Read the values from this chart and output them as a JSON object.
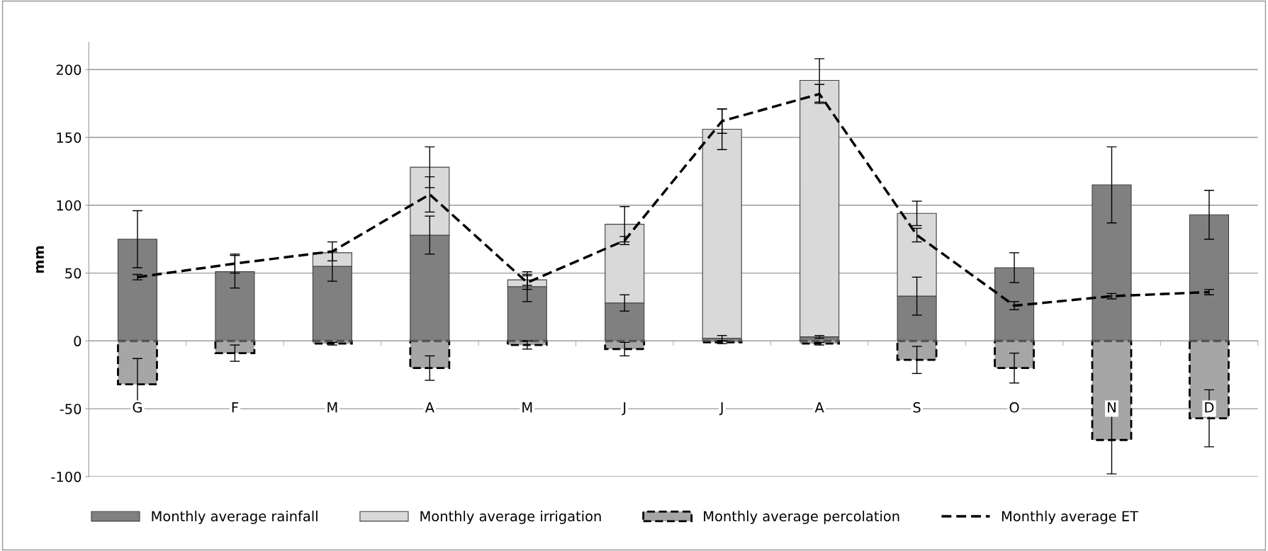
{
  "chart_data": {
    "type": "bar",
    "stacked": true,
    "ylabel": "mm",
    "categories": [
      "G",
      "F",
      "M",
      "A",
      "M",
      "J",
      "J",
      "A",
      "S",
      "O",
      "N",
      "D"
    ],
    "ylim": [
      -100,
      220
    ],
    "yticks": [
      -100,
      -50,
      0,
      50,
      100,
      150,
      200
    ],
    "grid": "y",
    "legend": "bottom",
    "series": [
      {
        "name": "Monthly average rainfall",
        "color": "#808080",
        "values": [
          75,
          51,
          55,
          78,
          40,
          28,
          2,
          3,
          33,
          54,
          115,
          93
        ],
        "errors": [
          21,
          12,
          11,
          14,
          11,
          6,
          2,
          1,
          14,
          11,
          28,
          18
        ]
      },
      {
        "name": "Monthly average irrigation",
        "color": "#d9d9d9",
        "values": [
          0,
          0,
          10,
          50,
          5,
          58,
          154,
          189,
          61,
          0,
          0,
          0
        ],
        "errors": [
          null,
          null,
          null,
          15,
          4,
          13,
          15,
          16,
          9,
          null,
          null,
          null
        ]
      },
      {
        "name": "Monthly average percolation",
        "color": "#a6a6a6",
        "line_style": "dashed",
        "values": [
          -32,
          -9,
          -2,
          -20,
          -3,
          -6,
          -1,
          -2,
          -14,
          -20,
          -73,
          -57
        ],
        "errors": [
          19,
          6,
          1,
          9,
          3,
          5,
          1,
          1,
          10,
          11,
          25,
          21
        ]
      },
      {
        "name": "Monthly average ET",
        "type": "line",
        "color": "#000000",
        "line_style": "dashed",
        "marker": "none",
        "values": [
          47,
          57,
          66,
          108,
          43,
          74,
          162,
          182,
          78,
          26,
          33,
          36
        ],
        "errors": [
          2,
          7,
          7,
          13,
          5,
          3,
          9,
          7,
          5,
          3,
          2,
          2
        ]
      }
    ]
  }
}
